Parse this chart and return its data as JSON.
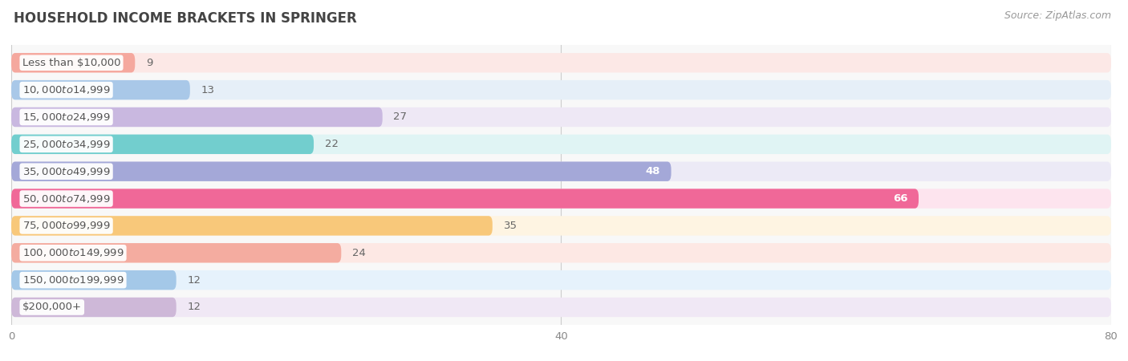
{
  "title": "HOUSEHOLD INCOME BRACKETS IN SPRINGER",
  "source": "Source: ZipAtlas.com",
  "categories": [
    "Less than $10,000",
    "$10,000 to $14,999",
    "$15,000 to $24,999",
    "$25,000 to $34,999",
    "$35,000 to $49,999",
    "$50,000 to $74,999",
    "$75,000 to $99,999",
    "$100,000 to $149,999",
    "$150,000 to $199,999",
    "$200,000+"
  ],
  "values": [
    9,
    13,
    27,
    22,
    48,
    66,
    35,
    24,
    12,
    12
  ],
  "bar_colors": [
    "#f5a89e",
    "#a9c8e8",
    "#c9b8e0",
    "#72cece",
    "#a4a8d8",
    "#f06898",
    "#f8c87a",
    "#f4aca0",
    "#a4c8e8",
    "#ceb8d8"
  ],
  "bar_bg_colors": [
    "#fce8e6",
    "#e6eff8",
    "#eee8f5",
    "#e0f4f4",
    "#eceaf6",
    "#fde4ee",
    "#fef4e2",
    "#fde8e4",
    "#e6f2fc",
    "#f0e8f5"
  ],
  "xlim": [
    0,
    80
  ],
  "xticks": [
    0,
    40,
    80
  ],
  "background_color": "#ffffff",
  "plot_bg_color": "#f8f8f8",
  "bar_height": 0.72,
  "title_fontsize": 12,
  "label_fontsize": 9.5,
  "value_fontsize": 9.5,
  "value_inside_threshold": 45
}
